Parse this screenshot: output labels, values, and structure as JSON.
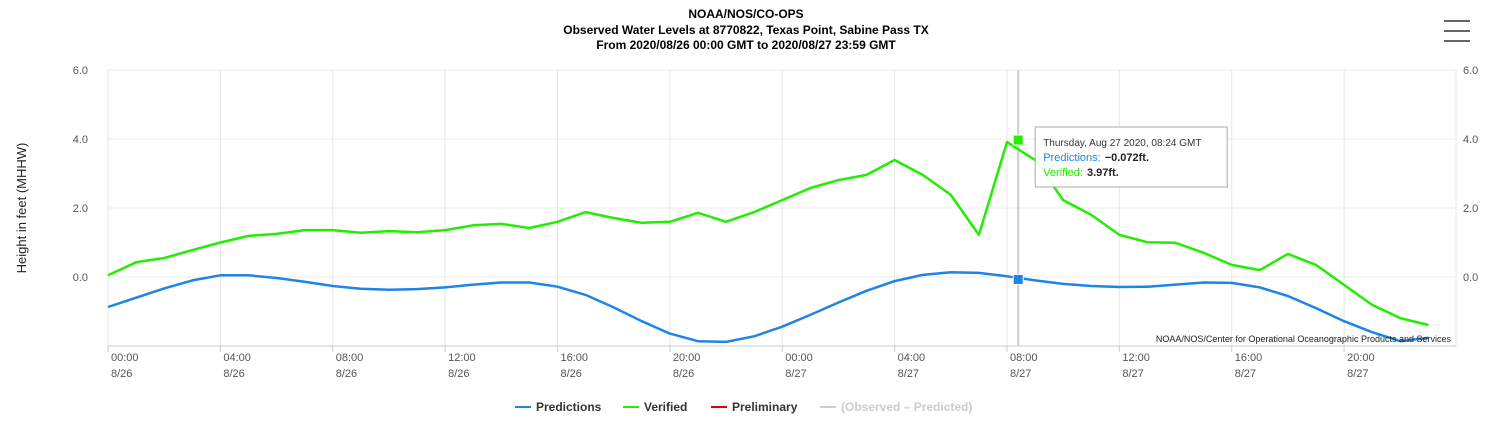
{
  "chart_data": {
    "type": "line",
    "title": "NOAA/NOS/CO-OPS",
    "subtitle": "Observed Water Levels at 8770822, Texas Point, Sabine Pass TX",
    "subtitle2": "From 2020/08/26 00:00 GMT to 2020/08/27 23:59 GMT",
    "ylabel": "Height in feet (MHHW)",
    "credits": "NOAA/NOS/Center for Operational Oceanographic Products and Services",
    "x": [
      "2020-08-26T00:00",
      "2020-08-26T01:00",
      "2020-08-26T02:00",
      "2020-08-26T03:00",
      "2020-08-26T04:00",
      "2020-08-26T05:00",
      "2020-08-26T06:00",
      "2020-08-26T07:00",
      "2020-08-26T08:00",
      "2020-08-26T09:00",
      "2020-08-26T10:00",
      "2020-08-26T11:00",
      "2020-08-26T12:00",
      "2020-08-26T13:00",
      "2020-08-26T14:00",
      "2020-08-26T15:00",
      "2020-08-26T16:00",
      "2020-08-26T17:00",
      "2020-08-26T18:00",
      "2020-08-26T19:00",
      "2020-08-26T20:00",
      "2020-08-26T21:00",
      "2020-08-26T22:00",
      "2020-08-26T23:00",
      "2020-08-27T00:00",
      "2020-08-27T01:00",
      "2020-08-27T02:00",
      "2020-08-27T03:00",
      "2020-08-27T04:00",
      "2020-08-27T05:00",
      "2020-08-27T06:00",
      "2020-08-27T07:00",
      "2020-08-27T08:00",
      "2020-08-27T09:00",
      "2020-08-27T10:00",
      "2020-08-27T11:00",
      "2020-08-27T12:00",
      "2020-08-27T13:00",
      "2020-08-27T14:00",
      "2020-08-27T15:00",
      "2020-08-27T16:00",
      "2020-08-27T17:00",
      "2020-08-27T18:00",
      "2020-08-27T19:00",
      "2020-08-27T20:00",
      "2020-08-27T21:00",
      "2020-08-27T22:00",
      "2020-08-27T23:00"
    ],
    "series": [
      {
        "name": "Predictions",
        "color": "#1f84e6",
        "values": [
          -0.87,
          -0.6,
          -0.33,
          -0.1,
          0.05,
          0.05,
          -0.03,
          -0.14,
          -0.26,
          -0.34,
          -0.37,
          -0.35,
          -0.3,
          -0.22,
          -0.16,
          -0.16,
          -0.28,
          -0.52,
          -0.88,
          -1.28,
          -1.64,
          -1.86,
          -1.88,
          -1.72,
          -1.44,
          -1.1,
          -0.74,
          -0.4,
          -0.12,
          0.06,
          0.14,
          0.12,
          0.02,
          -0.1,
          -0.2,
          -0.26,
          -0.29,
          -0.28,
          -0.22,
          -0.16,
          -0.17,
          -0.3,
          -0.55,
          -0.9,
          -1.28,
          -1.6,
          -1.86,
          -1.76
        ]
      },
      {
        "name": "Verified",
        "color": "#22ee00",
        "values": [
          0.05,
          0.43,
          0.55,
          0.78,
          1.0,
          1.19,
          1.25,
          1.36,
          1.36,
          1.28,
          1.33,
          1.3,
          1.36,
          1.5,
          1.54,
          1.42,
          1.6,
          1.88,
          1.71,
          1.57,
          1.6,
          1.86,
          1.6,
          1.88,
          2.23,
          2.58,
          2.81,
          2.96,
          3.39,
          2.96,
          2.38,
          1.22,
          3.91,
          3.39,
          2.23,
          1.8,
          1.22,
          1.01,
          0.99,
          0.7,
          0.35,
          0.2,
          0.67,
          0.35,
          -0.23,
          -0.81,
          -1.19,
          -1.39
        ]
      }
    ],
    "legend_only": [
      {
        "name": "Preliminary",
        "color": "#e00000"
      },
      {
        "name": "(Observed – Predicted)",
        "color": "#cccccc",
        "disabled": true
      }
    ],
    "xlim": [
      "2020-08-26T00:00",
      "2020-08-27T23:59"
    ],
    "xticks": [
      {
        "value": "2020-08-26T00:00",
        "label": [
          "00:00",
          "8/26"
        ]
      },
      {
        "value": "2020-08-26T04:00",
        "label": [
          "04:00",
          "8/26"
        ]
      },
      {
        "value": "2020-08-26T08:00",
        "label": [
          "08:00",
          "8/26"
        ]
      },
      {
        "value": "2020-08-26T12:00",
        "label": [
          "12:00",
          "8/26"
        ]
      },
      {
        "value": "2020-08-26T16:00",
        "label": [
          "16:00",
          "8/26"
        ]
      },
      {
        "value": "2020-08-26T20:00",
        "label": [
          "20:00",
          "8/26"
        ]
      },
      {
        "value": "2020-08-27T00:00",
        "label": [
          "00:00",
          "8/27"
        ]
      },
      {
        "value": "2020-08-27T04:00",
        "label": [
          "04:00",
          "8/27"
        ]
      },
      {
        "value": "2020-08-27T08:00",
        "label": [
          "08:00",
          "8/27"
        ]
      },
      {
        "value": "2020-08-27T12:00",
        "label": [
          "12:00",
          "8/27"
        ]
      },
      {
        "value": "2020-08-27T16:00",
        "label": [
          "16:00",
          "8/27"
        ]
      },
      {
        "value": "2020-08-27T20:00",
        "label": [
          "20:00",
          "8/27"
        ]
      }
    ],
    "ylim": [
      -2,
      6
    ],
    "yticks": [
      {
        "value": 0,
        "label": "0.0"
      },
      {
        "value": 2,
        "label": "2.0"
      },
      {
        "value": 4,
        "label": "4.0"
      },
      {
        "value": 6,
        "label": "6.0"
      }
    ],
    "grid": true,
    "tooltip": {
      "header": "Thursday, Aug 27 2020, 08:24 GMT",
      "x": "2020-08-27T08:24",
      "rows": [
        {
          "name": "Predictions:",
          "value": -0.072,
          "label": "−0.072ft.",
          "color": "#1f84e6"
        },
        {
          "name": "Verified:",
          "value": 3.97,
          "label": "3.97ft.",
          "color": "#22ee00"
        }
      ]
    }
  }
}
